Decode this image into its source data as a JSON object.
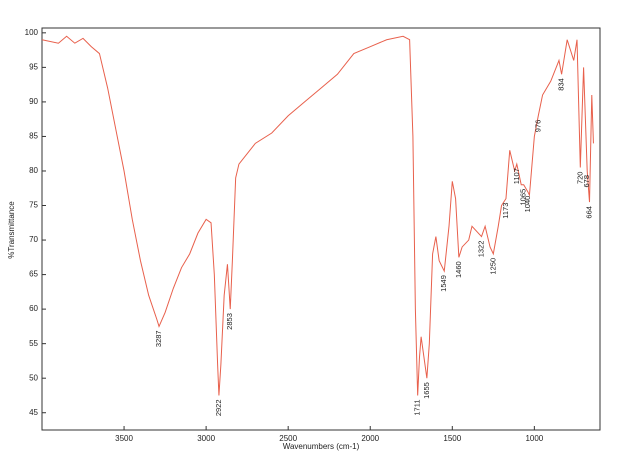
{
  "chart_data": {
    "type": "line",
    "x_label": "Wavenumbers (cm-1)",
    "y_label": "%Transmittance",
    "color": "#e8604c",
    "xlim": [
      4000,
      600
    ],
    "ylim": [
      42.5,
      100.7
    ],
    "xticks": [
      3500,
      3000,
      2500,
      2000,
      1500,
      1000
    ],
    "yticks": [
      45,
      50,
      55,
      60,
      65,
      70,
      75,
      80,
      85,
      90,
      95,
      100
    ],
    "x": [
      4000,
      3900,
      3850,
      3800,
      3750,
      3700,
      3650,
      3600,
      3550,
      3500,
      3450,
      3400,
      3350,
      3300,
      3287,
      3250,
      3200,
      3150,
      3100,
      3050,
      3000,
      2970,
      2950,
      2930,
      2922,
      2910,
      2890,
      2870,
      2853,
      2840,
      2820,
      2800,
      2700,
      2600,
      2500,
      2400,
      2300,
      2200,
      2100,
      2000,
      1900,
      1800,
      1760,
      1740,
      1725,
      1711,
      1700,
      1690,
      1655,
      1640,
      1620,
      1600,
      1580,
      1549,
      1520,
      1500,
      1480,
      1460,
      1440,
      1400,
      1380,
      1322,
      1300,
      1270,
      1250,
      1220,
      1200,
      1173,
      1150,
      1120,
      1107,
      1080,
      1065,
      1040,
      1030,
      1000,
      976,
      950,
      900,
      850,
      834,
      800,
      760,
      740,
      720,
      700,
      678,
      664,
      650,
      640
    ],
    "values": [
      99,
      98.5,
      99.5,
      98.5,
      99.2,
      98,
      97,
      92,
      86,
      80,
      73,
      67,
      62,
      58.5,
      57.5,
      59.5,
      63,
      66,
      68,
      71,
      73,
      72.5,
      65,
      52,
      47.5,
      52,
      62,
      66.5,
      60,
      67,
      79,
      81,
      84,
      85.5,
      88,
      90,
      92,
      94,
      97,
      98,
      99,
      99.5,
      99,
      85,
      60,
      47.5,
      53,
      56,
      50,
      55,
      68,
      70.5,
      67,
      65.5,
      72,
      78.5,
      76,
      67.5,
      69,
      70,
      72,
      70.5,
      72,
      69,
      68,
      72,
      75,
      76,
      83,
      80,
      81,
      78,
      78,
      77,
      76.5,
      85,
      88,
      91,
      93,
      96,
      94,
      99,
      96,
      99,
      80.5,
      95,
      80,
      75.5,
      91,
      84
    ],
    "annotations": [
      {
        "x": 3287,
        "y": 57.5,
        "text": "3287"
      },
      {
        "x": 2922,
        "y": 47.5,
        "text": "2922"
      },
      {
        "x": 2853,
        "y": 60,
        "text": "2853"
      },
      {
        "x": 1711,
        "y": 47.5,
        "text": "1711"
      },
      {
        "x": 1655,
        "y": 50,
        "text": "1655"
      },
      {
        "x": 1549,
        "y": 65.5,
        "text": "1549"
      },
      {
        "x": 1460,
        "y": 67.5,
        "text": "1460"
      },
      {
        "x": 1322,
        "y": 70.5,
        "text": "1322"
      },
      {
        "x": 1250,
        "y": 68,
        "text": "1250"
      },
      {
        "x": 1173,
        "y": 76,
        "text": "1173"
      },
      {
        "x": 1107,
        "y": 81,
        "text": "1107"
      },
      {
        "x": 1065,
        "y": 78,
        "text": "1065"
      },
      {
        "x": 1040,
        "y": 77,
        "text": "1040"
      },
      {
        "x": 976,
        "y": 88,
        "text": "976"
      },
      {
        "x": 834,
        "y": 94,
        "text": "834"
      },
      {
        "x": 720,
        "y": 80.5,
        "text": "720"
      },
      {
        "x": 678,
        "y": 80,
        "text": "678"
      },
      {
        "x": 664,
        "y": 75.5,
        "text": "664"
      }
    ]
  }
}
